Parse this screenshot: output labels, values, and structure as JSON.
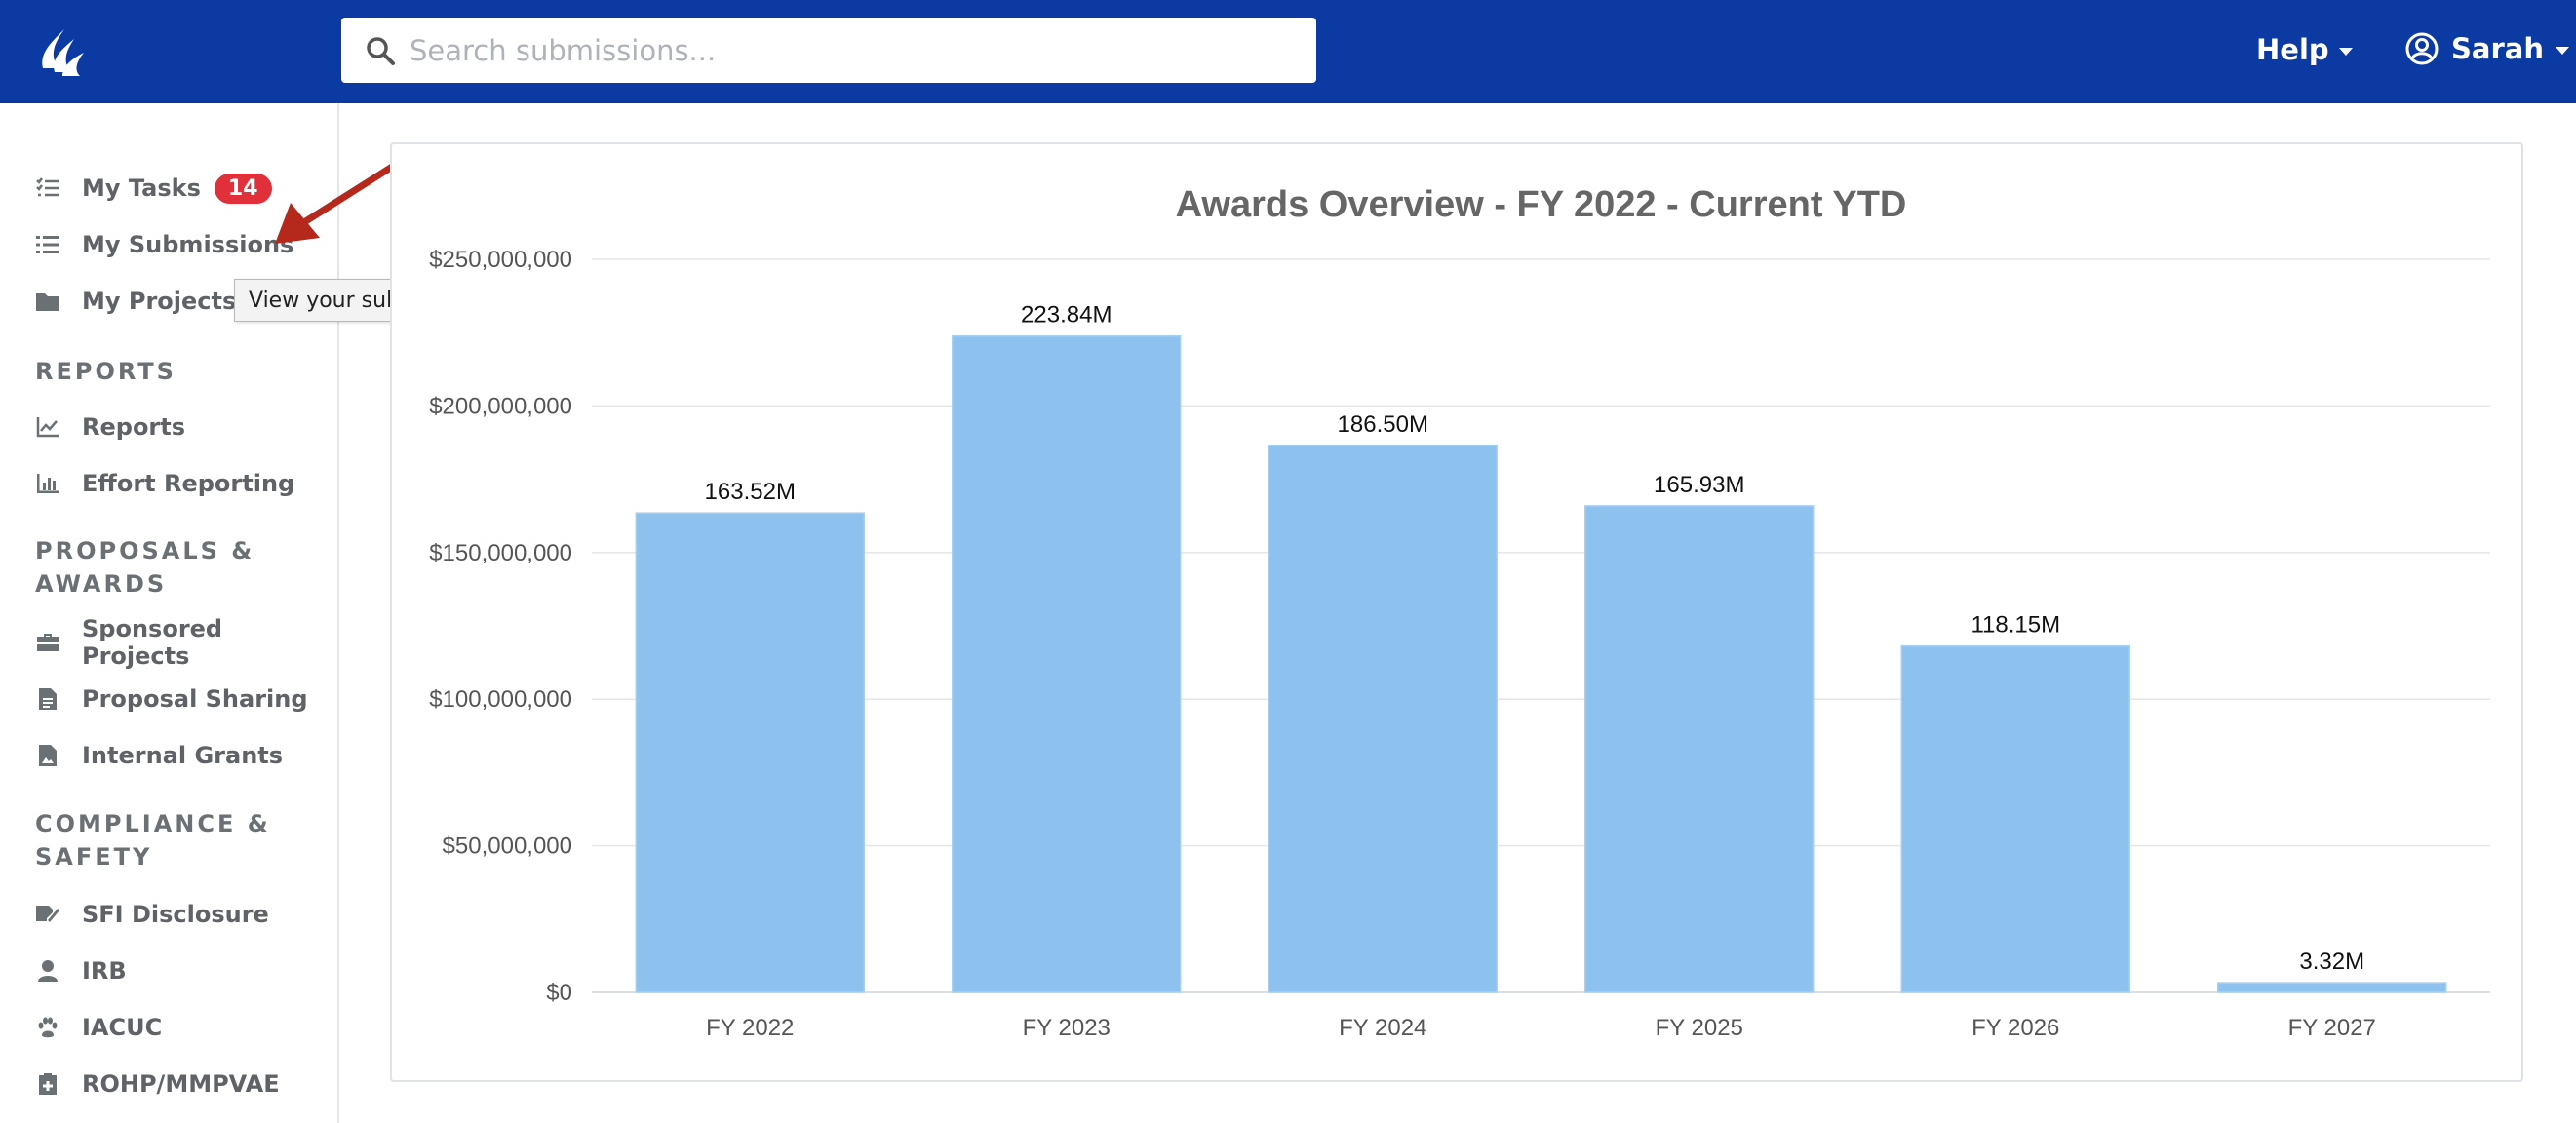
{
  "header": {
    "search_placeholder": "Search submissions...",
    "help_label": "Help",
    "user_label": "Sarah",
    "background_color": "#0a3aa2"
  },
  "sidebar": {
    "items": [
      {
        "label": "My Tasks",
        "icon": "tasks-list-icon",
        "badge": "14"
      },
      {
        "label": "My Submissions",
        "icon": "list-icon"
      },
      {
        "label": "My Projects",
        "icon": "folder-icon"
      }
    ],
    "sections": [
      {
        "heading": "REPORTS",
        "items": [
          {
            "label": "Reports",
            "icon": "line-chart-icon"
          },
          {
            "label": "Effort Reporting",
            "icon": "bar-chart-icon"
          }
        ]
      },
      {
        "heading_line1": "PROPOSALS &",
        "heading_line2": "AWARDS",
        "items": [
          {
            "label": "Sponsored Projects",
            "icon": "briefcase-icon"
          },
          {
            "label": "Proposal Sharing",
            "icon": "document-icon"
          },
          {
            "label": "Internal Grants",
            "icon": "document-image-icon"
          }
        ]
      },
      {
        "heading_line1": "COMPLIANCE &",
        "heading_line2": "SAFETY",
        "items": [
          {
            "label": "SFI Disclosure",
            "icon": "signature-icon"
          },
          {
            "label": "IRB",
            "icon": "user-icon"
          },
          {
            "label": "IACUC",
            "icon": "paw-icon"
          },
          {
            "label": "ROHP/MMPVAE",
            "icon": "medical-clipboard-icon"
          }
        ]
      }
    ]
  },
  "tooltip": {
    "text": "View your submissions and create new ones"
  },
  "annotation": {
    "arrow_color": "#b5291c"
  },
  "chart_data": {
    "type": "bar",
    "title": "Awards Overview - FY 2022 - Current YTD",
    "categories": [
      "FY 2022",
      "FY 2023",
      "FY 2024",
      "FY 2025",
      "FY 2026",
      "FY 2027"
    ],
    "values": [
      163520000,
      223840000,
      186500000,
      165930000,
      118150000,
      3320000
    ],
    "data_labels": [
      "163.52M",
      "223.84M",
      "186.50M",
      "165.93M",
      "118.15M",
      "3.32M"
    ],
    "ylim": [
      0,
      250000000
    ],
    "yticks": [
      0,
      50000000,
      100000000,
      150000000,
      200000000,
      250000000
    ],
    "ytick_labels": [
      "$0",
      "$50,000,000",
      "$100,000,000",
      "$150,000,000",
      "$200,000,000",
      "$250,000,000"
    ],
    "grid": true,
    "bar_color": "#8dc1ee"
  }
}
